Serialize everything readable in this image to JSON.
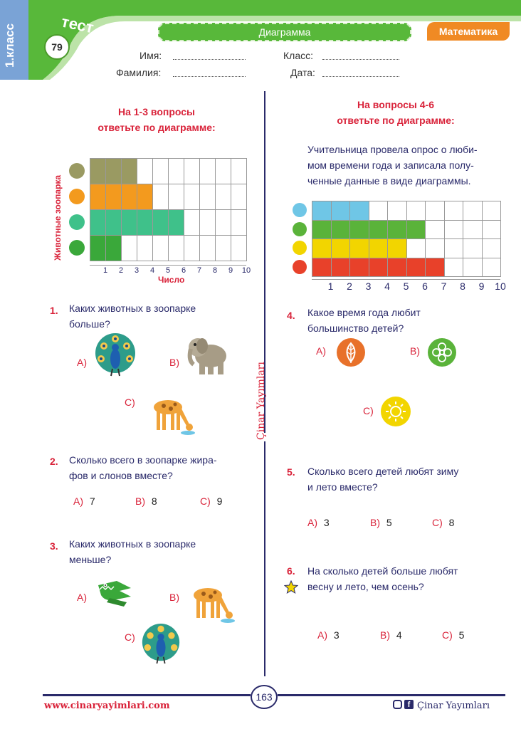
{
  "header": {
    "grade": "1.класс",
    "test_word": "тест",
    "test_number": "79",
    "topic": "Диаграмма",
    "subject": "Математика",
    "fields": {
      "name": "Имя:",
      "surname": "Фамилия:",
      "class": "Класс:",
      "date": "Дата:"
    }
  },
  "left": {
    "instructions": [
      "На 1-3 вопросы",
      "ответьте по диаграмме:"
    ],
    "chart_data": {
      "type": "bar",
      "orientation": "horizontal",
      "categories": [
        "elephant-icon",
        "giraffe-icon",
        "peacock-icon",
        "crocodile-icon"
      ],
      "values": [
        3,
        4,
        6,
        2
      ],
      "colors": [
        "#9a9a62",
        "#f39a1e",
        "#3fc18a",
        "#3aa83a"
      ],
      "xticks": [
        "1",
        "2",
        "3",
        "4",
        "5",
        "6",
        "7",
        "8",
        "9",
        "10"
      ],
      "xlabel": "Число",
      "ylabel": "Животные зоопарка",
      "xlim": [
        0,
        10
      ],
      "grid": true
    },
    "questions": [
      {
        "num": "1.",
        "lines": [
          "Каких животных в зоопарке",
          "больше?"
        ],
        "options": [
          {
            "label": "A)",
            "icon": "peacock-icon"
          },
          {
            "label": "B)",
            "icon": "elephant-icon"
          },
          {
            "label": "C)",
            "icon": "giraffe-icon"
          }
        ]
      },
      {
        "num": "2.",
        "lines": [
          "Сколько всего в зоопарке жира-",
          "фов и слонов вместе?"
        ],
        "options": [
          {
            "label": "A)",
            "value": "7"
          },
          {
            "label": "B)",
            "value": "8"
          },
          {
            "label": "C)",
            "value": "9"
          }
        ]
      },
      {
        "num": "3.",
        "lines": [
          "Каких животных в зоопарке",
          "меньше?"
        ],
        "options": [
          {
            "label": "A)",
            "icon": "crocodile-icon"
          },
          {
            "label": "B)",
            "icon": "giraffe-icon"
          },
          {
            "label": "C)",
            "icon": "peacock-icon"
          }
        ]
      }
    ]
  },
  "right": {
    "instructions": [
      "На вопросы 4-6",
      "ответьте по диаграмме:"
    ],
    "intro": [
      "Учительница провела опрос о люби-",
      "мом времени года и записала полу-",
      "ченные данные в виде диаграммы."
    ],
    "chart_data": {
      "type": "bar",
      "orientation": "horizontal",
      "categories": [
        "winter-icon",
        "spring-icon",
        "summer-icon",
        "autumn-icon"
      ],
      "values": [
        3,
        6,
        5,
        7
      ],
      "colors": [
        "#6fc6e6",
        "#5ab33a",
        "#f2d500",
        "#e8412a"
      ],
      "xticks": [
        "1",
        "2",
        "3",
        "4",
        "5",
        "6",
        "7",
        "8",
        "9",
        "10"
      ],
      "xlim": [
        0,
        10
      ],
      "grid": true
    },
    "questions": [
      {
        "num": "4.",
        "lines": [
          "Какое время года любит",
          "большинство детей?"
        ],
        "options": [
          {
            "label": "A)",
            "icon": "leaf-icon"
          },
          {
            "label": "B)",
            "icon": "flower-icon"
          },
          {
            "label": "C)",
            "icon": "sun-icon"
          }
        ]
      },
      {
        "num": "5.",
        "lines": [
          "Сколько всего детей любят зиму",
          "и лето вместе?"
        ],
        "options": [
          {
            "label": "A)",
            "value": "3"
          },
          {
            "label": "B)",
            "value": "5"
          },
          {
            "label": "C)",
            "value": "8"
          }
        ]
      },
      {
        "num": "6.",
        "lines": [
          "На сколько детей больше любят",
          "весну и лето, чем осень?"
        ],
        "options": [
          {
            "label": "A)",
            "value": "3"
          },
          {
            "label": "B)",
            "value": "4"
          },
          {
            "label": "C)",
            "value": "5"
          }
        ]
      }
    ]
  },
  "spine": {
    "publisher": "Çinar Yayımları"
  },
  "footer": {
    "website": "www.cinaryayimlari.com",
    "page": "163",
    "publisher": "Çinar Yayımları"
  }
}
